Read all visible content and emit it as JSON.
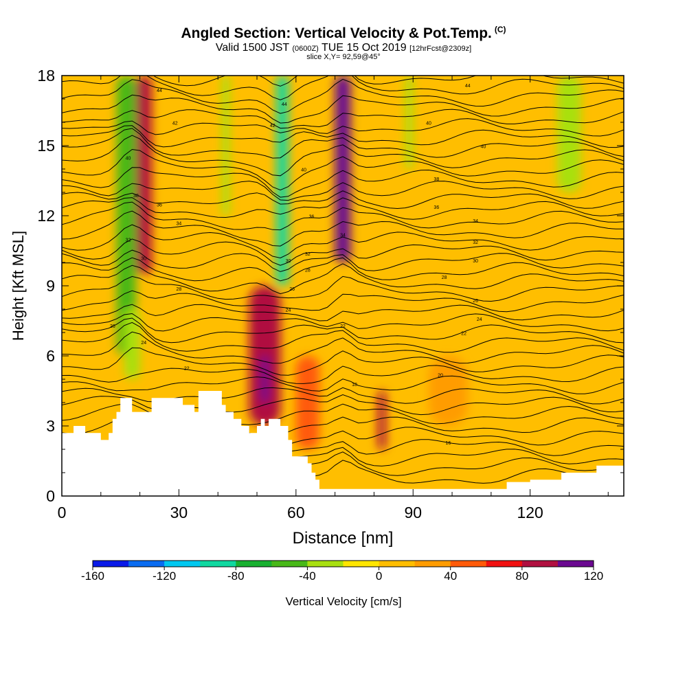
{
  "header": {
    "title": "Angled Section: Vertical Velocity & Pot.Temp.",
    "title_units": "(C)",
    "valid_prefix": "Valid 1500 JST",
    "valid_zulu": "(0600Z)",
    "valid_date": "TUE 15 Oct 2019",
    "forecast": "[12hrFcst@2309z]",
    "slice": "slice X,Y= 92,59@45°"
  },
  "chart_data": {
    "type": "heatmap",
    "xlabel": "Distance [nm]",
    "ylabel": "Height [Kft MSL]",
    "xlim": [
      0,
      144
    ],
    "ylim": [
      0,
      18
    ],
    "x_ticks": [
      "0",
      "30",
      "60",
      "90",
      "120"
    ],
    "x_tick_values": [
      0,
      30,
      60,
      90,
      120
    ],
    "y_ticks": [
      "0",
      "3",
      "6",
      "9",
      "12",
      "15",
      "18"
    ],
    "y_tick_values": [
      0,
      3,
      6,
      9,
      12,
      15,
      18
    ],
    "background_value_cms": 10,
    "velocity_cells": [
      {
        "x": [
          14,
          19
        ],
        "y": [
          6.0,
          18
        ],
        "v": -60
      },
      {
        "x": [
          19,
          23
        ],
        "y": [
          9.5,
          18
        ],
        "v": 80
      },
      {
        "x": [
          41,
          43
        ],
        "y": [
          12,
          18
        ],
        "v": -40
      },
      {
        "x": [
          55,
          58
        ],
        "y": [
          9,
          18
        ],
        "v": -100
      },
      {
        "x": [
          70,
          74
        ],
        "y": [
          10,
          18
        ],
        "v": 120
      },
      {
        "x": [
          88,
          90
        ],
        "y": [
          14,
          18
        ],
        "v": -30
      },
      {
        "x": [
          127,
          133
        ],
        "y": [
          13,
          18
        ],
        "v": -40
      },
      {
        "x": [
          48,
          56
        ],
        "y": [
          3,
          9
        ],
        "v": 80
      },
      {
        "x": [
          51,
          53
        ],
        "y": [
          4,
          6
        ],
        "v": 120
      },
      {
        "x": [
          81,
          83
        ],
        "y": [
          2,
          4.5
        ],
        "v": 80
      },
      {
        "x": [
          60,
          66
        ],
        "y": [
          2,
          6
        ],
        "v": 40
      },
      {
        "x": [
          16,
          20
        ],
        "y": [
          5,
          8
        ],
        "v": -30
      },
      {
        "x": [
          94,
          104
        ],
        "y": [
          3,
          6
        ],
        "v": 20
      }
    ],
    "theta_labels": [
      {
        "x": 25,
        "y": 17.3,
        "label": "44"
      },
      {
        "x": 29,
        "y": 15.9,
        "label": "42"
      },
      {
        "x": 57,
        "y": 16.7,
        "label": "44"
      },
      {
        "x": 54,
        "y": 15.8,
        "label": "42"
      },
      {
        "x": 62,
        "y": 13.9,
        "label": "40"
      },
      {
        "x": 94,
        "y": 15.9,
        "label": "40"
      },
      {
        "x": 104,
        "y": 17.5,
        "label": "44"
      },
      {
        "x": 108,
        "y": 14.9,
        "label": "40"
      },
      {
        "x": 96,
        "y": 13.5,
        "label": "38"
      },
      {
        "x": 96,
        "y": 12.3,
        "label": "36"
      },
      {
        "x": 106,
        "y": 11.7,
        "label": "34"
      },
      {
        "x": 106,
        "y": 10.8,
        "label": "32"
      },
      {
        "x": 106,
        "y": 10.0,
        "label": "30"
      },
      {
        "x": 98,
        "y": 9.3,
        "label": "28"
      },
      {
        "x": 106,
        "y": 8.3,
        "label": "26"
      },
      {
        "x": 107,
        "y": 7.5,
        "label": "24"
      },
      {
        "x": 103,
        "y": 6.9,
        "label": "22"
      },
      {
        "x": 97,
        "y": 5.1,
        "label": "20"
      },
      {
        "x": 75,
        "y": 4.7,
        "label": "18"
      },
      {
        "x": 99,
        "y": 2.2,
        "label": "16"
      },
      {
        "x": 19,
        "y": 12.8,
        "label": "38"
      },
      {
        "x": 25,
        "y": 12.4,
        "label": "36"
      },
      {
        "x": 30,
        "y": 11.6,
        "label": "34"
      },
      {
        "x": 17,
        "y": 14.4,
        "label": "40"
      },
      {
        "x": 17,
        "y": 10.9,
        "label": "32"
      },
      {
        "x": 21,
        "y": 10.1,
        "label": "30"
      },
      {
        "x": 30,
        "y": 8.8,
        "label": "28"
      },
      {
        "x": 13,
        "y": 7.2,
        "label": "26"
      },
      {
        "x": 21,
        "y": 6.5,
        "label": "24"
      },
      {
        "x": 32,
        "y": 5.4,
        "label": "22"
      },
      {
        "x": 64,
        "y": 11.9,
        "label": "36"
      },
      {
        "x": 63,
        "y": 10.3,
        "label": "32"
      },
      {
        "x": 58,
        "y": 10.0,
        "label": "30"
      },
      {
        "x": 63,
        "y": 9.6,
        "label": "28"
      },
      {
        "x": 59,
        "y": 8.8,
        "label": "26"
      },
      {
        "x": 58,
        "y": 7.9,
        "label": "24"
      },
      {
        "x": 72,
        "y": 11.1,
        "label": "34"
      },
      {
        "x": 72,
        "y": 7.2,
        "label": "22"
      }
    ],
    "terrain": [
      [
        0,
        2.7
      ],
      [
        3,
        2.7
      ],
      [
        3,
        3.0
      ],
      [
        6,
        3.0
      ],
      [
        6,
        2.7
      ],
      [
        10,
        2.7
      ],
      [
        10,
        2.4
      ],
      [
        12,
        2.4
      ],
      [
        12,
        2.7
      ],
      [
        13,
        2.7
      ],
      [
        13,
        3.3
      ],
      [
        14,
        3.3
      ],
      [
        14,
        3.6
      ],
      [
        15,
        3.6
      ],
      [
        15,
        4.2
      ],
      [
        18,
        4.2
      ],
      [
        18,
        3.6
      ],
      [
        23,
        3.6
      ],
      [
        23,
        4.2
      ],
      [
        31,
        4.2
      ],
      [
        31,
        3.9
      ],
      [
        34,
        3.9
      ],
      [
        34,
        3.6
      ],
      [
        35,
        3.6
      ],
      [
        35,
        4.5
      ],
      [
        41,
        4.5
      ],
      [
        41,
        3.9
      ],
      [
        42,
        3.9
      ],
      [
        42,
        3.6
      ],
      [
        44,
        3.6
      ],
      [
        44,
        3.3
      ],
      [
        46,
        3.3
      ],
      [
        46,
        3.0
      ],
      [
        48,
        3.0
      ],
      [
        48,
        2.7
      ],
      [
        50,
        2.7
      ],
      [
        50,
        3.0
      ],
      [
        51,
        3.0
      ],
      [
        51,
        3.3
      ],
      [
        52,
        3.3
      ],
      [
        52,
        3.0
      ],
      [
        53,
        3.0
      ],
      [
        53,
        3.3
      ],
      [
        56,
        3.3
      ],
      [
        56,
        3.0
      ],
      [
        58,
        3.0
      ],
      [
        58,
        2.4
      ],
      [
        59,
        2.4
      ],
      [
        59,
        1.7
      ],
      [
        63,
        1.7
      ],
      [
        63,
        1.4
      ],
      [
        64,
        1.4
      ],
      [
        64,
        1.0
      ],
      [
        65,
        1.0
      ],
      [
        65,
        0.7
      ],
      [
        66,
        0.7
      ],
      [
        66,
        0.3
      ],
      [
        114,
        0.3
      ],
      [
        114,
        0.6
      ],
      [
        120,
        0.6
      ],
      [
        120,
        0.7
      ],
      [
        128,
        0.7
      ],
      [
        128,
        1.0
      ],
      [
        137,
        1.0
      ],
      [
        137,
        1.3
      ],
      [
        144,
        1.3
      ]
    ]
  },
  "colorbar": {
    "label": "Vertical Velocity [cm/s]",
    "tick_labels": [
      "-160",
      "-120",
      "-80",
      "-40",
      "0",
      "40",
      "80",
      "120"
    ],
    "tick_values": [
      -160,
      -120,
      -80,
      -40,
      0,
      40,
      80,
      120
    ],
    "colors": [
      "#0a1ae8",
      "#0a6cf0",
      "#00c8f0",
      "#10d8a0",
      "#18b030",
      "#48b818",
      "#a8e010",
      "#ffe600",
      "#ffbe00",
      "#ff9c00",
      "#ff5a08",
      "#f01010",
      "#b01040",
      "#6a0890"
    ]
  }
}
